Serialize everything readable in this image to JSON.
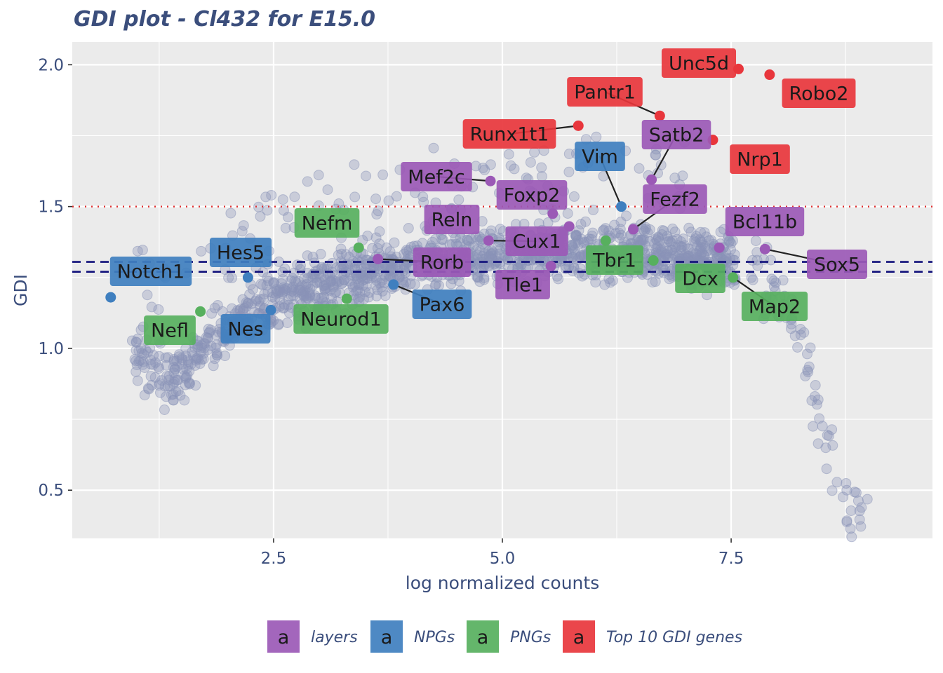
{
  "chart_data": {
    "type": "scatter",
    "title": "GDI plot - Cl432 for E15.0",
    "xlabel": "log normalized counts",
    "ylabel": "GDI",
    "xlim": [
      0.3,
      9.7
    ],
    "ylim": [
      0.33,
      2.08
    ],
    "x_ticks": [
      {
        "value": 2.5,
        "label": "2.5"
      },
      {
        "value": 5.0,
        "label": "5.0"
      },
      {
        "value": 7.5,
        "label": "7.5"
      }
    ],
    "y_ticks": [
      {
        "value": 0.5,
        "label": "0.5"
      },
      {
        "value": 1.0,
        "label": "1.0"
      },
      {
        "value": 1.5,
        "label": "1.5"
      },
      {
        "value": 2.0,
        "label": "2.0"
      }
    ],
    "grid": true,
    "reference_lines": [
      {
        "y": 1.5,
        "style": "dotted",
        "color": "#e03030"
      },
      {
        "y": 1.305,
        "style": "dashed",
        "color": "#10107a"
      },
      {
        "y": 1.27,
        "style": "dashed",
        "color": "#10107a"
      }
    ],
    "background_series": {
      "name": "other genes",
      "color": "#8a93b8",
      "description": "thousands of genes shown as semi-transparent points",
      "trend": [
        [
          1.0,
          1.0
        ],
        [
          1.2,
          0.9
        ],
        [
          1.4,
          0.88
        ],
        [
          1.6,
          0.96
        ],
        [
          2.0,
          1.08
        ],
        [
          2.5,
          1.16
        ],
        [
          3.0,
          1.22
        ],
        [
          3.5,
          1.27
        ],
        [
          4.0,
          1.3
        ],
        [
          4.5,
          1.32
        ],
        [
          5.0,
          1.33
        ],
        [
          5.5,
          1.34
        ],
        [
          6.0,
          1.35
        ],
        [
          6.5,
          1.35
        ],
        [
          7.0,
          1.33
        ],
        [
          7.5,
          1.3
        ],
        [
          8.0,
          1.2
        ],
        [
          8.3,
          1.0
        ],
        [
          8.5,
          0.7
        ],
        [
          8.7,
          0.45
        ]
      ]
    },
    "categories": {
      "layers": "#9b59b6",
      "NPGs": "#3f7fbf",
      "PNGs": "#57b05e",
      "Top 10 GDI genes": "#e8363c"
    },
    "highlighted_genes": [
      {
        "gene": "Unc5d",
        "x": 7.58,
        "y": 1.985,
        "category": "Top 10 GDI genes"
      },
      {
        "gene": "Robo2",
        "x": 7.92,
        "y": 1.965,
        "category": "Top 10 GDI genes"
      },
      {
        "gene": "Pantr1",
        "x": 6.72,
        "y": 1.82,
        "category": "Top 10 GDI genes"
      },
      {
        "gene": "Runx1t1",
        "x": 5.83,
        "y": 1.785,
        "category": "Top 10 GDI genes"
      },
      {
        "gene": "Nrp1",
        "x": 7.3,
        "y": 1.735,
        "category": "Top 10 GDI genes"
      },
      {
        "gene": "Satb2",
        "x": 6.63,
        "y": 1.595,
        "category": "layers"
      },
      {
        "gene": "Mef2c",
        "x": 4.87,
        "y": 1.59,
        "category": "layers"
      },
      {
        "gene": "Foxp2",
        "x": 5.55,
        "y": 1.475,
        "category": "layers"
      },
      {
        "gene": "Fezf2",
        "x": 6.43,
        "y": 1.42,
        "category": "layers"
      },
      {
        "gene": "Reln",
        "x": 5.73,
        "y": 1.43,
        "category": "layers"
      },
      {
        "gene": "Bcl11b",
        "x": 7.37,
        "y": 1.355,
        "category": "layers"
      },
      {
        "gene": "Sox5",
        "x": 7.87,
        "y": 1.35,
        "category": "layers"
      },
      {
        "gene": "Cux1",
        "x": 4.85,
        "y": 1.38,
        "category": "layers"
      },
      {
        "gene": "Rorb",
        "x": 3.64,
        "y": 1.315,
        "category": "layers"
      },
      {
        "gene": "Tle1",
        "x": 5.53,
        "y": 1.29,
        "category": "layers"
      },
      {
        "gene": "Vim",
        "x": 6.3,
        "y": 1.5,
        "category": "NPGs"
      },
      {
        "gene": "Hes5",
        "x": 2.22,
        "y": 1.25,
        "category": "NPGs"
      },
      {
        "gene": "Notch1",
        "x": 0.72,
        "y": 1.18,
        "category": "NPGs"
      },
      {
        "gene": "Pax6",
        "x": 3.81,
        "y": 1.225,
        "category": "NPGs"
      },
      {
        "gene": "Nes",
        "x": 2.47,
        "y": 1.135,
        "category": "NPGs"
      },
      {
        "gene": "Nefm",
        "x": 3.43,
        "y": 1.355,
        "category": "PNGs"
      },
      {
        "gene": "Tbr1",
        "x": 6.13,
        "y": 1.38,
        "category": "PNGs"
      },
      {
        "gene": "Dcx",
        "x": 6.65,
        "y": 1.31,
        "category": "PNGs"
      },
      {
        "gene": "Map2",
        "x": 7.52,
        "y": 1.25,
        "category": "PNGs"
      },
      {
        "gene": "Neurod1",
        "x": 3.3,
        "y": 1.175,
        "category": "PNGs"
      },
      {
        "gene": "Nefl",
        "x": 1.7,
        "y": 1.13,
        "category": "PNGs"
      }
    ],
    "legend": {
      "placement": "bottom",
      "glyph": "a",
      "entries": [
        "layers",
        "NPGs",
        "PNGs",
        "Top 10 GDI genes"
      ]
    }
  }
}
